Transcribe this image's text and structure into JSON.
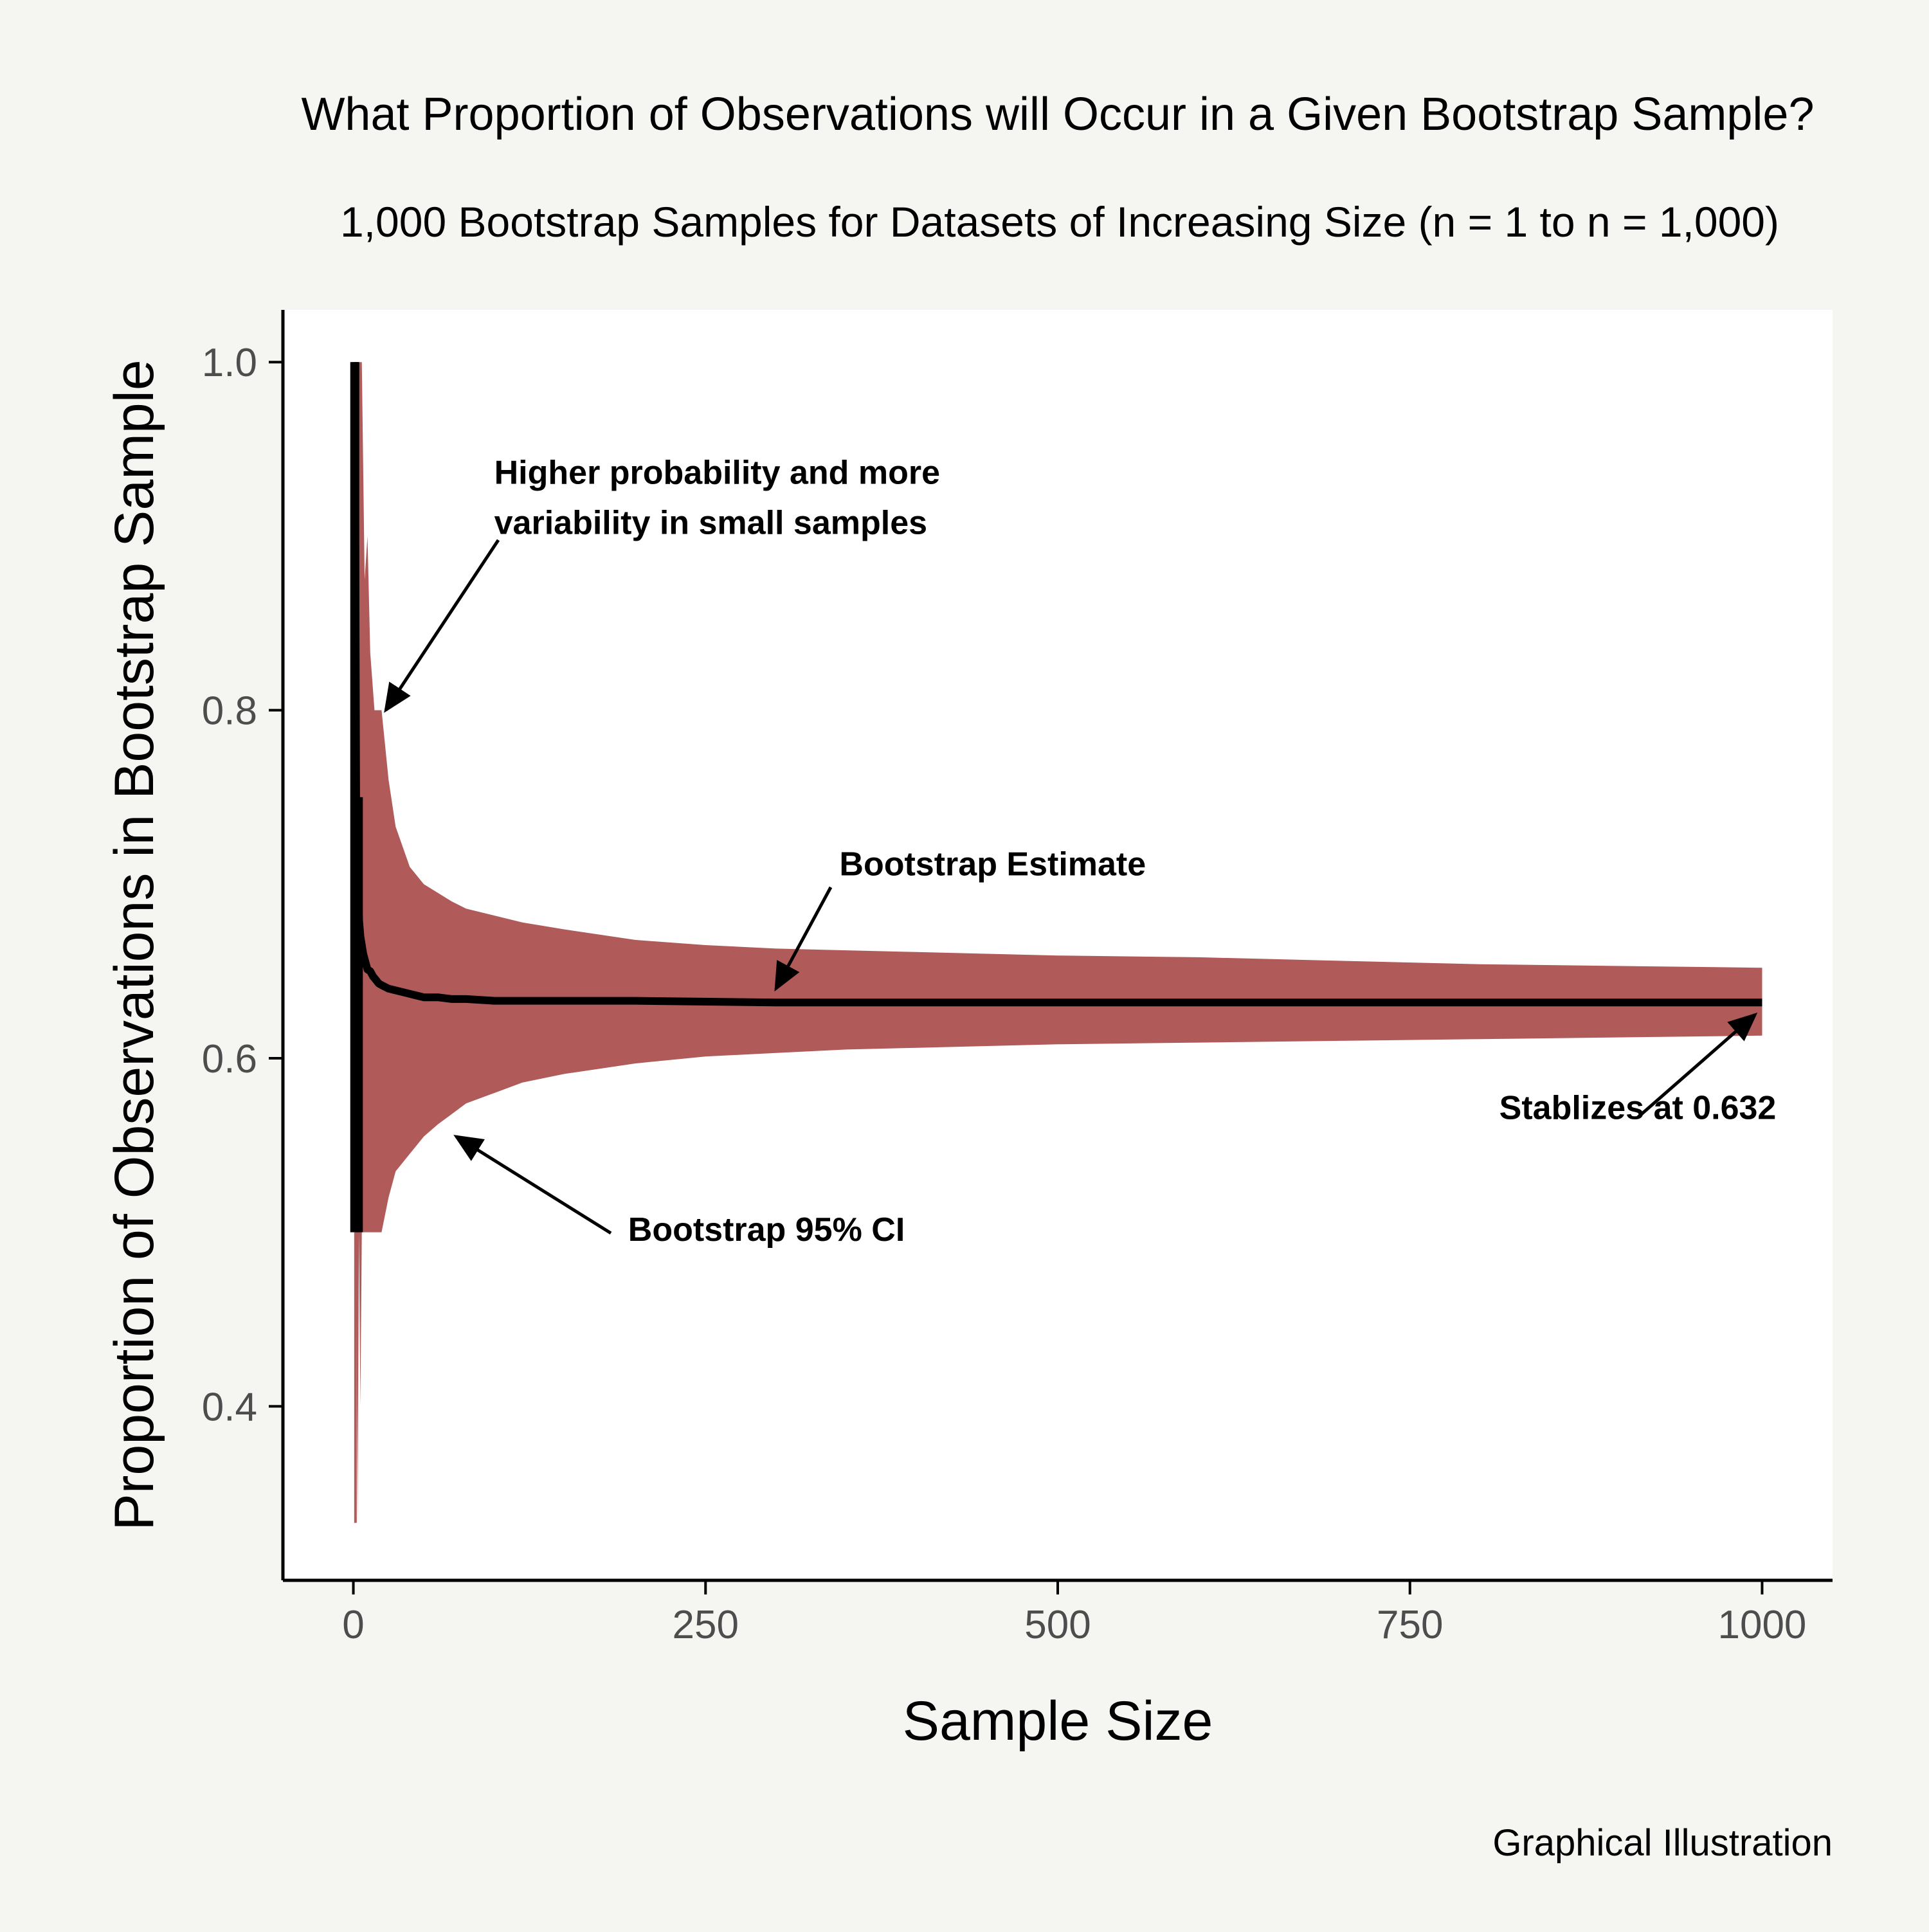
{
  "chart_data": {
    "type": "area",
    "title": "What Proportion of Observations will Occur in a Given Bootstrap Sample?",
    "subtitle": "1,000 Bootstrap Samples for Datasets of Increasing Size (n = 1 to n = 1,000)",
    "caption": "Graphical Illustration",
    "xlabel": "Sample Size",
    "ylabel": "Proportion of Observations in Bootstrap Sample",
    "xlim": [
      -50,
      1050
    ],
    "ylim": [
      0.3,
      1.03
    ],
    "xticks": [
      0,
      250,
      500,
      750,
      1000
    ],
    "xtick_labels": [
      "0",
      "250",
      "500",
      "750",
      "1000"
    ],
    "yticks": [
      0.4,
      0.6,
      0.8,
      1.0
    ],
    "ytick_labels": [
      "0.4",
      "0.6",
      "0.8",
      "1.0"
    ],
    "grid": false,
    "colors": {
      "ci_band": "#b05a5a",
      "estimate": "#000000",
      "background": "#f5f5f2",
      "panel": "#ffffff"
    },
    "series": [
      {
        "kind": "ribbon",
        "x": [
          1,
          2,
          3,
          4,
          5,
          6,
          8,
          10,
          12,
          15,
          20,
          25,
          30,
          40,
          50,
          60,
          70,
          80,
          100,
          120,
          150,
          200,
          250,
          300,
          350,
          400,
          450,
          500,
          600,
          700,
          800,
          900,
          1000
        ],
        "lower": [
          1.0,
          0.5,
          0.333,
          0.5,
          0.4,
          0.5,
          0.5,
          0.5,
          0.5,
          0.5,
          0.5,
          0.52,
          0.535,
          0.545,
          0.555,
          0.562,
          0.568,
          0.574,
          0.58,
          0.586,
          0.591,
          0.597,
          0.601,
          0.603,
          0.605,
          0.606,
          0.607,
          0.608,
          0.609,
          0.61,
          0.611,
          0.612,
          0.613
        ],
        "upper": [
          1.0,
          1.0,
          1.0,
          1.0,
          1.0,
          1.0,
          0.875,
          0.9,
          0.833,
          0.8,
          0.8,
          0.76,
          0.733,
          0.71,
          0.7,
          0.695,
          0.69,
          0.686,
          0.682,
          0.678,
          0.674,
          0.668,
          0.665,
          0.663,
          0.662,
          0.661,
          0.66,
          0.659,
          0.658,
          0.656,
          0.654,
          0.653,
          0.652
        ]
      },
      {
        "kind": "line",
        "x": [
          1,
          2,
          3,
          4,
          5,
          6,
          7,
          8,
          9,
          10,
          12,
          14,
          16,
          18,
          20,
          25,
          30,
          35,
          40,
          45,
          50,
          60,
          70,
          80,
          100,
          150,
          200,
          300,
          400,
          500,
          600,
          700,
          800,
          900,
          1000
        ],
        "y": [
          1.0,
          0.75,
          0.7,
          0.68,
          0.67,
          0.665,
          0.66,
          0.657,
          0.654,
          0.651,
          0.65,
          0.647,
          0.645,
          0.643,
          0.642,
          0.64,
          0.639,
          0.638,
          0.637,
          0.636,
          0.635,
          0.635,
          0.634,
          0.634,
          0.633,
          0.633,
          0.633,
          0.632,
          0.632,
          0.632,
          0.632,
          0.632,
          0.632,
          0.632,
          0.632
        ]
      }
    ],
    "annotations": [
      {
        "lines": [
          "Higher probability and more",
          "variability in small samples"
        ],
        "x": 100,
        "y": 0.93,
        "arrow_to": [
          23,
          0.8
        ]
      },
      {
        "lines": [
          "Bootstrap Estimate"
        ],
        "x": 345,
        "y": 0.705,
        "arrow_to": [
          300,
          0.64
        ]
      },
      {
        "lines": [
          "Stablizes at 0.632"
        ],
        "x": 1010,
        "y": 0.565,
        "anchor": "end",
        "arrow_to": [
          995,
          0.625
        ]
      },
      {
        "lines": [
          "Bootstrap 95% CI"
        ],
        "x": 195,
        "y": 0.495,
        "arrow_to": [
          73,
          0.555
        ]
      }
    ]
  }
}
